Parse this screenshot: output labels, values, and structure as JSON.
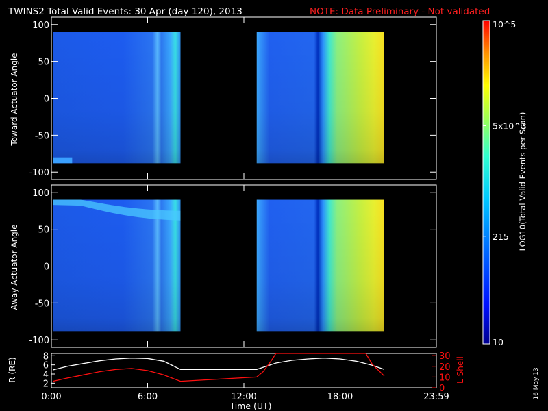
{
  "header": {
    "title": "TWINS2  Total Valid Events: 30 Apr (day 120), 2013",
    "note": "NOTE: Data Preliminary - Not validated",
    "note_color": "#ff2020"
  },
  "footer": {
    "date_stamp": "16 May 13"
  },
  "colorbar": {
    "label": "LOG10(Total Valid Events per Scan)",
    "ticks": [
      {
        "value": 100000,
        "label": "10^5"
      },
      {
        "value": 5000,
        "label": "5x10^3"
      },
      {
        "value": 215,
        "label": "215"
      },
      {
        "value": 10,
        "label": "10"
      }
    ],
    "range": [
      10,
      100000
    ],
    "scale": "log"
  },
  "chart_data": [
    {
      "type": "heatmap",
      "panel": "toward",
      "ylabel": "Toward Actuator Angle",
      "ylim": [
        -110,
        110
      ],
      "yticks": [
        -100,
        -50,
        0,
        50,
        100
      ],
      "xlim": [
        0,
        24
      ],
      "xticks": [
        0,
        6,
        12,
        18,
        24
      ],
      "data_ranges": [
        [
          0.1,
          8.05
        ],
        [
          12.8,
          20.75
        ]
      ],
      "angle_range": [
        -88,
        90
      ]
    },
    {
      "type": "heatmap",
      "panel": "away",
      "ylabel": "Away Actuator Angle",
      "ylim": [
        -110,
        110
      ],
      "yticks": [
        -100,
        -50,
        0,
        50,
        100
      ],
      "xlim": [
        0,
        24
      ],
      "xticks": [
        0,
        6,
        12,
        18,
        24
      ],
      "data_ranges": [
        [
          0.1,
          8.05
        ],
        [
          12.8,
          20.75
        ]
      ],
      "angle_range": [
        -88,
        90
      ]
    },
    {
      "type": "line",
      "panel": "orbit",
      "xlabel": "Time (UT)",
      "xticklabels": [
        "0:00",
        "6:00",
        "12:00",
        "18:00",
        "23:59"
      ],
      "xlim": [
        0,
        24
      ],
      "ylabel_left": "R (RE)",
      "ylim_left": [
        1,
        8.5
      ],
      "yticks_left": [
        2,
        4,
        6,
        8
      ],
      "ylabel_right": "L Shell",
      "ylim_right": [
        0,
        32
      ],
      "yticks_right": [
        0,
        10,
        20,
        30
      ],
      "right_color": "#ff1010",
      "series": [
        {
          "axis": "left",
          "color": "#ffffff",
          "x": [
            0.1,
            1,
            2,
            3,
            4,
            5,
            6,
            7,
            8.05,
            12.8,
            14,
            15,
            16,
            17,
            18,
            19,
            20,
            20.75
          ],
          "y": [
            4.9,
            5.7,
            6.3,
            6.9,
            7.3,
            7.5,
            7.4,
            6.8,
            5.0,
            5.0,
            6.4,
            7.0,
            7.3,
            7.5,
            7.3,
            6.8,
            5.9,
            5.0
          ]
        },
        {
          "axis": "right",
          "color": "#ff1010",
          "x": [
            0.1,
            1,
            2,
            3,
            4,
            5,
            6,
            7,
            8.05,
            12.8,
            13.2,
            13.7,
            14.0,
            19.6,
            20.0,
            20.75
          ],
          "y": [
            6,
            9,
            12,
            15,
            17,
            18,
            16,
            12,
            6,
            10,
            15,
            25,
            32,
            32,
            22,
            11
          ]
        }
      ]
    }
  ]
}
